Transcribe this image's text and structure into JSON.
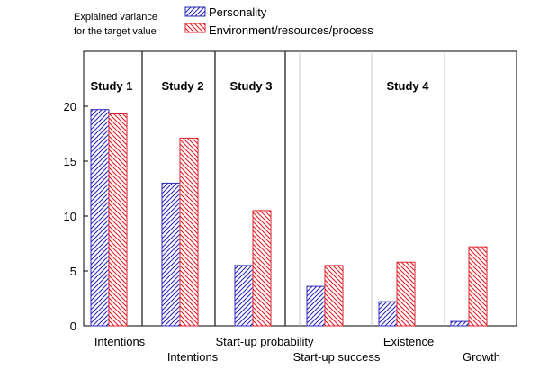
{
  "chart_data": {
    "type": "bar",
    "legend_caption": [
      "Explained variance",
      "for the target value"
    ],
    "legend_placement": "top-left",
    "series": [
      {
        "name": "Personality",
        "color": "#2b2bb8",
        "pattern": "hatch-up",
        "values": [
          19.7,
          13.0,
          5.5,
          3.6,
          2.2,
          0.4
        ]
      },
      {
        "name": "Environment/resources/process",
        "color": "#e0202a",
        "pattern": "hatch-down",
        "values": [
          19.3,
          17.1,
          10.5,
          5.5,
          5.8,
          7.2
        ]
      }
    ],
    "categories": [
      "Intentions",
      "Intentions",
      "Start-up probability",
      "Start-up success",
      "Existence",
      "Growth"
    ],
    "groups": [
      {
        "label": "Study 1",
        "categories": [
          0
        ]
      },
      {
        "label": "Study 2",
        "categories": [
          1
        ]
      },
      {
        "label": "Study 3",
        "categories": [
          2
        ]
      },
      {
        "label": "Study 4",
        "categories": [
          3,
          4,
          5
        ]
      }
    ],
    "yticks": [
      "0",
      "5",
      "10",
      "15",
      "20"
    ],
    "ylim": [
      0,
      25
    ],
    "xlabel": "",
    "ylabel": "",
    "grid": "vertical lines between categories"
  }
}
